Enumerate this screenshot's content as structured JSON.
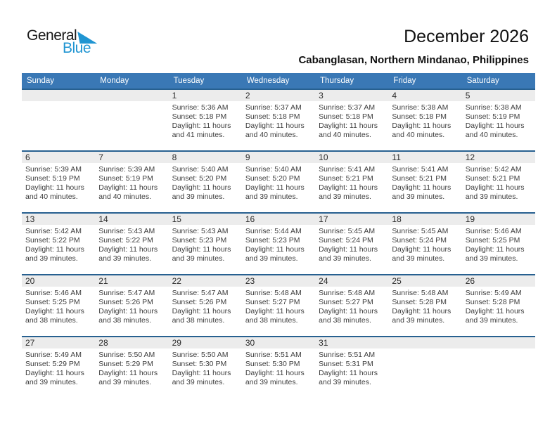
{
  "logo": {
    "part1": "General",
    "part2": "Blue"
  },
  "header": {
    "title": "December 2026",
    "subtitle": "Cabanglasan, Northern Mindanao, Philippines"
  },
  "colors": {
    "header_bg": "#3a78b5",
    "week_border": "#276090",
    "day_strip_bg": "#ececec",
    "logo_blue": "#2095d2"
  },
  "calendar": {
    "day_headers": [
      "Sunday",
      "Monday",
      "Tuesday",
      "Wednesday",
      "Thursday",
      "Friday",
      "Saturday"
    ],
    "weeks": [
      [
        null,
        null,
        {
          "day": "1",
          "sunrise": "Sunrise: 5:36 AM",
          "sunset": "Sunset: 5:18 PM",
          "daylight": [
            "Daylight: 11 hours",
            "and 41 minutes."
          ]
        },
        {
          "day": "2",
          "sunrise": "Sunrise: 5:37 AM",
          "sunset": "Sunset: 5:18 PM",
          "daylight": [
            "Daylight: 11 hours",
            "and 40 minutes."
          ]
        },
        {
          "day": "3",
          "sunrise": "Sunrise: 5:37 AM",
          "sunset": "Sunset: 5:18 PM",
          "daylight": [
            "Daylight: 11 hours",
            "and 40 minutes."
          ]
        },
        {
          "day": "4",
          "sunrise": "Sunrise: 5:38 AM",
          "sunset": "Sunset: 5:18 PM",
          "daylight": [
            "Daylight: 11 hours",
            "and 40 minutes."
          ]
        },
        {
          "day": "5",
          "sunrise": "Sunrise: 5:38 AM",
          "sunset": "Sunset: 5:19 PM",
          "daylight": [
            "Daylight: 11 hours",
            "and 40 minutes."
          ]
        }
      ],
      [
        {
          "day": "6",
          "sunrise": "Sunrise: 5:39 AM",
          "sunset": "Sunset: 5:19 PM",
          "daylight": [
            "Daylight: 11 hours",
            "and 40 minutes."
          ]
        },
        {
          "day": "7",
          "sunrise": "Sunrise: 5:39 AM",
          "sunset": "Sunset: 5:19 PM",
          "daylight": [
            "Daylight: 11 hours",
            "and 40 minutes."
          ]
        },
        {
          "day": "8",
          "sunrise": "Sunrise: 5:40 AM",
          "sunset": "Sunset: 5:20 PM",
          "daylight": [
            "Daylight: 11 hours",
            "and 39 minutes."
          ]
        },
        {
          "day": "9",
          "sunrise": "Sunrise: 5:40 AM",
          "sunset": "Sunset: 5:20 PM",
          "daylight": [
            "Daylight: 11 hours",
            "and 39 minutes."
          ]
        },
        {
          "day": "10",
          "sunrise": "Sunrise: 5:41 AM",
          "sunset": "Sunset: 5:21 PM",
          "daylight": [
            "Daylight: 11 hours",
            "and 39 minutes."
          ]
        },
        {
          "day": "11",
          "sunrise": "Sunrise: 5:41 AM",
          "sunset": "Sunset: 5:21 PM",
          "daylight": [
            "Daylight: 11 hours",
            "and 39 minutes."
          ]
        },
        {
          "day": "12",
          "sunrise": "Sunrise: 5:42 AM",
          "sunset": "Sunset: 5:21 PM",
          "daylight": [
            "Daylight: 11 hours",
            "and 39 minutes."
          ]
        }
      ],
      [
        {
          "day": "13",
          "sunrise": "Sunrise: 5:42 AM",
          "sunset": "Sunset: 5:22 PM",
          "daylight": [
            "Daylight: 11 hours",
            "and 39 minutes."
          ]
        },
        {
          "day": "14",
          "sunrise": "Sunrise: 5:43 AM",
          "sunset": "Sunset: 5:22 PM",
          "daylight": [
            "Daylight: 11 hours",
            "and 39 minutes."
          ]
        },
        {
          "day": "15",
          "sunrise": "Sunrise: 5:43 AM",
          "sunset": "Sunset: 5:23 PM",
          "daylight": [
            "Daylight: 11 hours",
            "and 39 minutes."
          ]
        },
        {
          "day": "16",
          "sunrise": "Sunrise: 5:44 AM",
          "sunset": "Sunset: 5:23 PM",
          "daylight": [
            "Daylight: 11 hours",
            "and 39 minutes."
          ]
        },
        {
          "day": "17",
          "sunrise": "Sunrise: 5:45 AM",
          "sunset": "Sunset: 5:24 PM",
          "daylight": [
            "Daylight: 11 hours",
            "and 39 minutes."
          ]
        },
        {
          "day": "18",
          "sunrise": "Sunrise: 5:45 AM",
          "sunset": "Sunset: 5:24 PM",
          "daylight": [
            "Daylight: 11 hours",
            "and 39 minutes."
          ]
        },
        {
          "day": "19",
          "sunrise": "Sunrise: 5:46 AM",
          "sunset": "Sunset: 5:25 PM",
          "daylight": [
            "Daylight: 11 hours",
            "and 39 minutes."
          ]
        }
      ],
      [
        {
          "day": "20",
          "sunrise": "Sunrise: 5:46 AM",
          "sunset": "Sunset: 5:25 PM",
          "daylight": [
            "Daylight: 11 hours",
            "and 38 minutes."
          ]
        },
        {
          "day": "21",
          "sunrise": "Sunrise: 5:47 AM",
          "sunset": "Sunset: 5:26 PM",
          "daylight": [
            "Daylight: 11 hours",
            "and 38 minutes."
          ]
        },
        {
          "day": "22",
          "sunrise": "Sunrise: 5:47 AM",
          "sunset": "Sunset: 5:26 PM",
          "daylight": [
            "Daylight: 11 hours",
            "and 38 minutes."
          ]
        },
        {
          "day": "23",
          "sunrise": "Sunrise: 5:48 AM",
          "sunset": "Sunset: 5:27 PM",
          "daylight": [
            "Daylight: 11 hours",
            "and 38 minutes."
          ]
        },
        {
          "day": "24",
          "sunrise": "Sunrise: 5:48 AM",
          "sunset": "Sunset: 5:27 PM",
          "daylight": [
            "Daylight: 11 hours",
            "and 38 minutes."
          ]
        },
        {
          "day": "25",
          "sunrise": "Sunrise: 5:48 AM",
          "sunset": "Sunset: 5:28 PM",
          "daylight": [
            "Daylight: 11 hours",
            "and 39 minutes."
          ]
        },
        {
          "day": "26",
          "sunrise": "Sunrise: 5:49 AM",
          "sunset": "Sunset: 5:28 PM",
          "daylight": [
            "Daylight: 11 hours",
            "and 39 minutes."
          ]
        }
      ],
      [
        {
          "day": "27",
          "sunrise": "Sunrise: 5:49 AM",
          "sunset": "Sunset: 5:29 PM",
          "daylight": [
            "Daylight: 11 hours",
            "and 39 minutes."
          ]
        },
        {
          "day": "28",
          "sunrise": "Sunrise: 5:50 AM",
          "sunset": "Sunset: 5:29 PM",
          "daylight": [
            "Daylight: 11 hours",
            "and 39 minutes."
          ]
        },
        {
          "day": "29",
          "sunrise": "Sunrise: 5:50 AM",
          "sunset": "Sunset: 5:30 PM",
          "daylight": [
            "Daylight: 11 hours",
            "and 39 minutes."
          ]
        },
        {
          "day": "30",
          "sunrise": "Sunrise: 5:51 AM",
          "sunset": "Sunset: 5:30 PM",
          "daylight": [
            "Daylight: 11 hours",
            "and 39 minutes."
          ]
        },
        {
          "day": "31",
          "sunrise": "Sunrise: 5:51 AM",
          "sunset": "Sunset: 5:31 PM",
          "daylight": [
            "Daylight: 11 hours",
            "and 39 minutes."
          ]
        },
        null,
        null
      ]
    ]
  }
}
